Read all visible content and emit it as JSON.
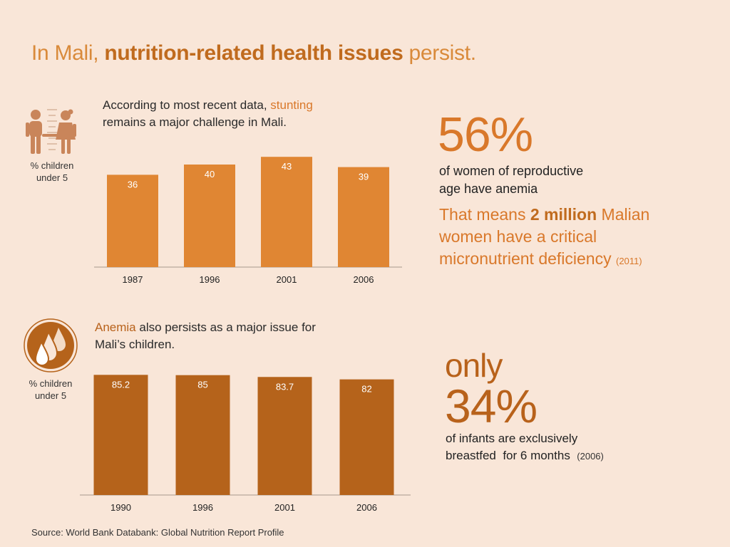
{
  "title": {
    "prefix": "In Mali, ",
    "emphasis": "nutrition-related health issues",
    "suffix": " persist."
  },
  "stunting_section": {
    "intro_1": "According to most recent data, ",
    "intro_highlight": "stunting",
    "intro_2": "remains a major challenge in Mali.",
    "unit_line1": "% children",
    "unit_line2": "under 5",
    "icon": "children-icon"
  },
  "anemia_section": {
    "intro_highlight": "Anemia",
    "intro_1": " also persists as a major issue for",
    "intro_2": "Mali’s children.",
    "unit_line1": "% children",
    "unit_line2": "under 5",
    "icon": "drops-icon"
  },
  "women_stat": {
    "percent": "56%",
    "desc_line1": "of women of reproductive",
    "desc_line2": "age have anemia",
    "means_1": "That means ",
    "means_bold": "2 million",
    "means_2": " Malian",
    "means_3": "women have a critical",
    "means_4": "micronutrient deficiency",
    "year": "(2011)"
  },
  "breastfeed_stat": {
    "only": "only",
    "percent": "34%",
    "desc_line1": "of infants are exclusively",
    "desc_line2": "breastfed  for 6 months",
    "year": "(2006)"
  },
  "source": "Source: World Bank Databank: Global Nutrition Report Profile",
  "colors": {
    "stunting_bar": "#e08633",
    "anemia_bar": "#b5631b",
    "background": "#f9e6d8",
    "axis": "#b9a89a"
  },
  "chart_data": [
    {
      "type": "bar",
      "title": "Stunting",
      "ylabel": "% children under 5",
      "categories": [
        "1987",
        "1996",
        "2001",
        "2006"
      ],
      "values": [
        36,
        40,
        43,
        39
      ],
      "labels": [
        "36",
        "40",
        "43",
        "39"
      ]
    },
    {
      "type": "bar",
      "title": "Anemia",
      "ylabel": "% children under 5",
      "categories": [
        "1990",
        "1996",
        "2001",
        "2006"
      ],
      "values": [
        85.2,
        85,
        83.7,
        82
      ],
      "labels": [
        "85.2",
        "85",
        "83.7",
        "82"
      ]
    }
  ]
}
